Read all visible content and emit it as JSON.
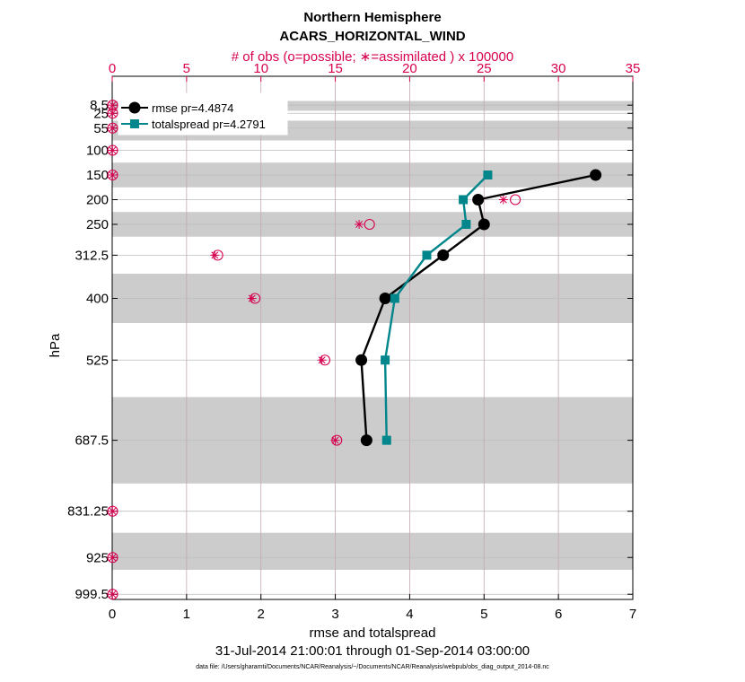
{
  "chart_data": {
    "type": "line",
    "title": "Northern Hemisphere",
    "subtitle": "ACARS_HORIZONTAL_WIND",
    "top_axis_label": "# of obs (o=possible; ∗=assimilated ) x 100000",
    "xlabel": "rmse and totalspread",
    "ylabel": "hPa",
    "date_range": "31-Jul-2014 21:00:01 through 01-Sep-2014 03:00:00",
    "footnote": "data file: /Users/gharamti/Documents/NCAR/Reanalysis/~/Documents/NCAR/Reanalysis/webpub/obs_diag_output_2014-08.nc",
    "xlim": [
      0,
      7
    ],
    "top_xlim": [
      0,
      35
    ],
    "x_ticks": [
      "0",
      "1",
      "2",
      "3",
      "4",
      "5",
      "6",
      "7"
    ],
    "top_x_ticks": [
      "0",
      "5",
      "10",
      "15",
      "20",
      "25",
      "30",
      "35"
    ],
    "y_ticks": [
      "8.5",
      "25",
      "55",
      "100",
      "150",
      "200",
      "250",
      "312.5",
      "400",
      "525",
      "687.5",
      "831.25",
      "925",
      "999.5"
    ],
    "levels": [
      8.5,
      25,
      55,
      100,
      150,
      200,
      250,
      312.5,
      400,
      525,
      687.5,
      831.25,
      925,
      999.5
    ],
    "bands": [
      [
        0,
        20
      ],
      [
        40,
        80
      ],
      [
        125,
        175
      ],
      [
        225,
        275
      ],
      [
        350,
        450
      ],
      [
        600,
        775
      ],
      [
        875,
        950
      ]
    ],
    "legend": [
      {
        "label": "rmse pr=4.4874",
        "color": "#000000"
      },
      {
        "label": "totalspread pr=4.2791",
        "color": "#00868b"
      }
    ],
    "series": [
      {
        "name": "rmse",
        "color": "#000000",
        "levels": [
          150,
          200,
          250,
          312.5,
          400,
          525,
          687.5
        ],
        "values": [
          6.5,
          4.92,
          5.0,
          4.45,
          3.67,
          3.35,
          3.42
        ]
      },
      {
        "name": "totalspread",
        "color": "#00868b",
        "levels": [
          150,
          200,
          250,
          312.5,
          400,
          525,
          687.5
        ],
        "values": [
          5.05,
          4.72,
          4.76,
          4.23,
          3.8,
          3.67,
          3.69
        ]
      }
    ],
    "obs_possible": {
      "levels": [
        8.5,
        25,
        55,
        100,
        150,
        200,
        250,
        312.5,
        400,
        525,
        687.5,
        831.25,
        925,
        999.5
      ],
      "values": [
        0.03,
        0.03,
        0.03,
        0.03,
        0.03,
        27.1,
        17.3,
        7.1,
        9.6,
        14.3,
        15.1,
        0.03,
        0.03,
        0.03
      ]
    },
    "obs_assimilated": {
      "levels": [
        8.5,
        25,
        55,
        100,
        150,
        200,
        250,
        312.5,
        400,
        525,
        687.5,
        831.25,
        925,
        999.5
      ],
      "values": [
        0.02,
        0.02,
        0.02,
        0.02,
        0.02,
        26.3,
        16.6,
        6.9,
        9.4,
        14.1,
        15.0,
        0.02,
        0.02,
        0.02
      ]
    }
  }
}
